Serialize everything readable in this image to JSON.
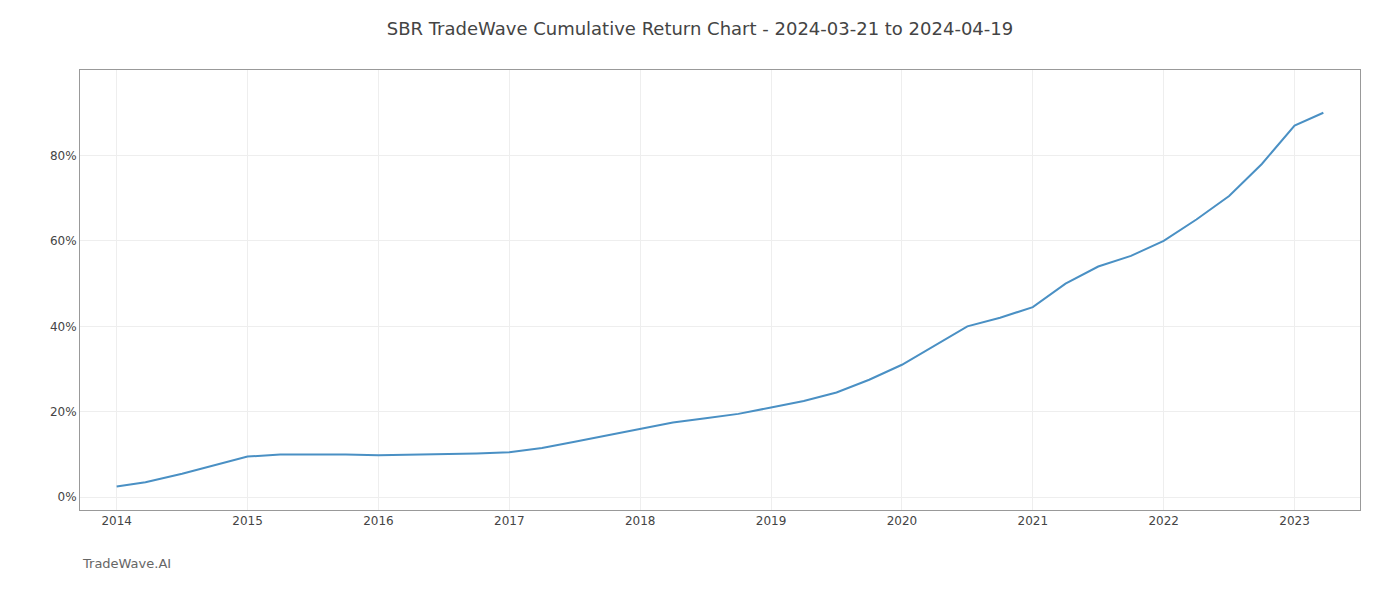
{
  "chart_data": {
    "type": "line",
    "title": "SBR TradeWave Cumulative Return Chart - 2024-03-21 to 2024-04-19",
    "annotations": [
      "TradeWave.AI"
    ],
    "x": [
      2014.0,
      2014.22,
      2014.5,
      2014.75,
      2015.0,
      2015.25,
      2015.5,
      2015.75,
      2016.0,
      2016.25,
      2016.5,
      2016.75,
      2017.0,
      2017.25,
      2017.5,
      2017.75,
      2018.0,
      2018.25,
      2018.5,
      2018.75,
      2019.0,
      2019.25,
      2019.5,
      2019.75,
      2020.0,
      2020.25,
      2020.5,
      2020.75,
      2021.0,
      2021.25,
      2021.5,
      2021.75,
      2022.0,
      2022.25,
      2022.5,
      2022.75,
      2023.0,
      2023.22
    ],
    "values": [
      2.5,
      3.5,
      5.5,
      7.5,
      9.5,
      10.0,
      10.0,
      10.0,
      9.8,
      9.9,
      10.0,
      10.2,
      10.5,
      11.5,
      13.0,
      14.5,
      16.0,
      17.5,
      18.5,
      19.5,
      21.0,
      22.5,
      24.5,
      27.5,
      31.0,
      35.5,
      40.0,
      42.0,
      44.5,
      50.0,
      54.0,
      56.5,
      60.0,
      65.0,
      70.5,
      78.0,
      87.0,
      90.0
    ],
    "color": "#4a90c4",
    "xlim": [
      2013.72,
      2023.5
    ],
    "xticks": [
      2014,
      2015,
      2016,
      2017,
      2018,
      2019,
      2020,
      2021,
      2022,
      2023
    ],
    "ylim": [
      -3,
      100
    ],
    "yticks": [
      {
        "value": 0,
        "label": "0%"
      },
      {
        "value": 20,
        "label": "20%"
      },
      {
        "value": 40,
        "label": "40%"
      },
      {
        "value": 60,
        "label": "60%"
      },
      {
        "value": 80,
        "label": "80%"
      }
    ],
    "grid": true
  }
}
